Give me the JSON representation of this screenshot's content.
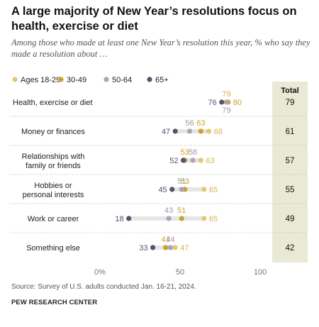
{
  "title": "A large majority of New Year’s resolutions focus on health, exercise or diet",
  "subtitle": "Among those who made at least one New Year’s resolution this year, % who say they made a resolution about …",
  "source": "Source: Survey of U.S. adults conducted Jan. 16-21, 2024.",
  "brand": "PEW RESEARCH CENTER",
  "colors": {
    "ages_18_29": "#E5C96E",
    "ages_30_49": "#C9A227",
    "ages_50_64": "#ADA5B4",
    "ages_65_plus": "#5B4F6E",
    "total_panel": "#E9E9D6"
  },
  "chart_data": {
    "type": "dot",
    "title": "A large majority of New Year’s resolutions focus on health, exercise or diet",
    "subtitle": "Among those who made at least one New Year’s resolution this year, % who say they made a resolution about …",
    "categories": [
      "Health, exercise or diet",
      "Money or finances",
      "Relationships with\nfamily or friends",
      "Hobbies or\npersonal interests",
      "Work or career",
      "Something else"
    ],
    "series": [
      {
        "name": "Ages 18-29",
        "values": [
          79,
          68,
          63,
          65,
          65,
          47
        ]
      },
      {
        "name": "30-49",
        "values": [
          80,
          63,
          53,
          53,
          51,
          41
        ]
      },
      {
        "name": "50-64",
        "values": [
          79,
          56,
          58,
          51,
          43,
          44
        ]
      },
      {
        "name": "65+",
        "values": [
          76,
          47,
          52,
          45,
          18,
          33
        ]
      }
    ],
    "total_label": "Total",
    "totals": [
      79,
      61,
      57,
      55,
      49,
      42
    ],
    "xlim": [
      0,
      100
    ],
    "xticks": [
      "0%",
      "50",
      "100"
    ],
    "legend": "top-left",
    "grid": false
  }
}
